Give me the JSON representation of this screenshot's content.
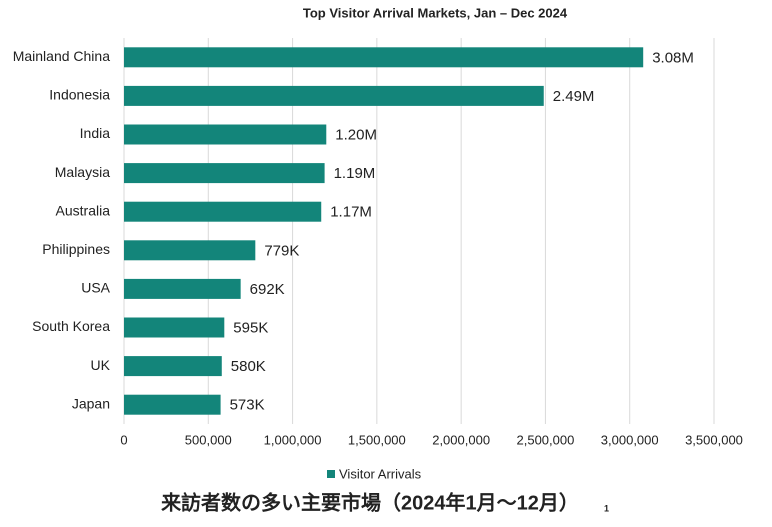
{
  "chart_data": {
    "type": "bar",
    "orientation": "horizontal",
    "title": "Top Visitor Arrival Markets, Jan – Dec 2024",
    "categories": [
      "Mainland China",
      "Indonesia",
      "India",
      "Malaysia",
      "Australia",
      "Philippines",
      "USA",
      "South Korea",
      "UK",
      "Japan"
    ],
    "series": [
      {
        "name": "Visitor Arrivals",
        "color": "#13857a",
        "values": [
          3080000,
          2490000,
          1200000,
          1190000,
          1170000,
          779000,
          692000,
          595000,
          580000,
          573000
        ],
        "value_labels": [
          "3.08M",
          "2.49M",
          "1.20M",
          "1.19M",
          "1.17M",
          "779K",
          "692K",
          "595K",
          "580K",
          "573K"
        ]
      }
    ],
    "xlim": [
      0,
      3500000
    ],
    "xticks": [
      0,
      {
        "value": 500000,
        "label": "500,000"
      },
      {
        "value": 1000000,
        "label": "1,000,000"
      },
      {
        "value": 1500000,
        "label": "1,500,000"
      },
      {
        "value": 2000000,
        "label": "2,000,000"
      },
      {
        "value": 2500000,
        "label": "2,500,000"
      },
      {
        "value": 3000000,
        "label": "3,000,000"
      },
      {
        "value": 3500000,
        "label": "3,500,000"
      }
    ],
    "grid": true,
    "legend": "bottom",
    "caption": "来訪者数の多い主要市場（2024年1月～12月）",
    "caption_note": "1"
  }
}
